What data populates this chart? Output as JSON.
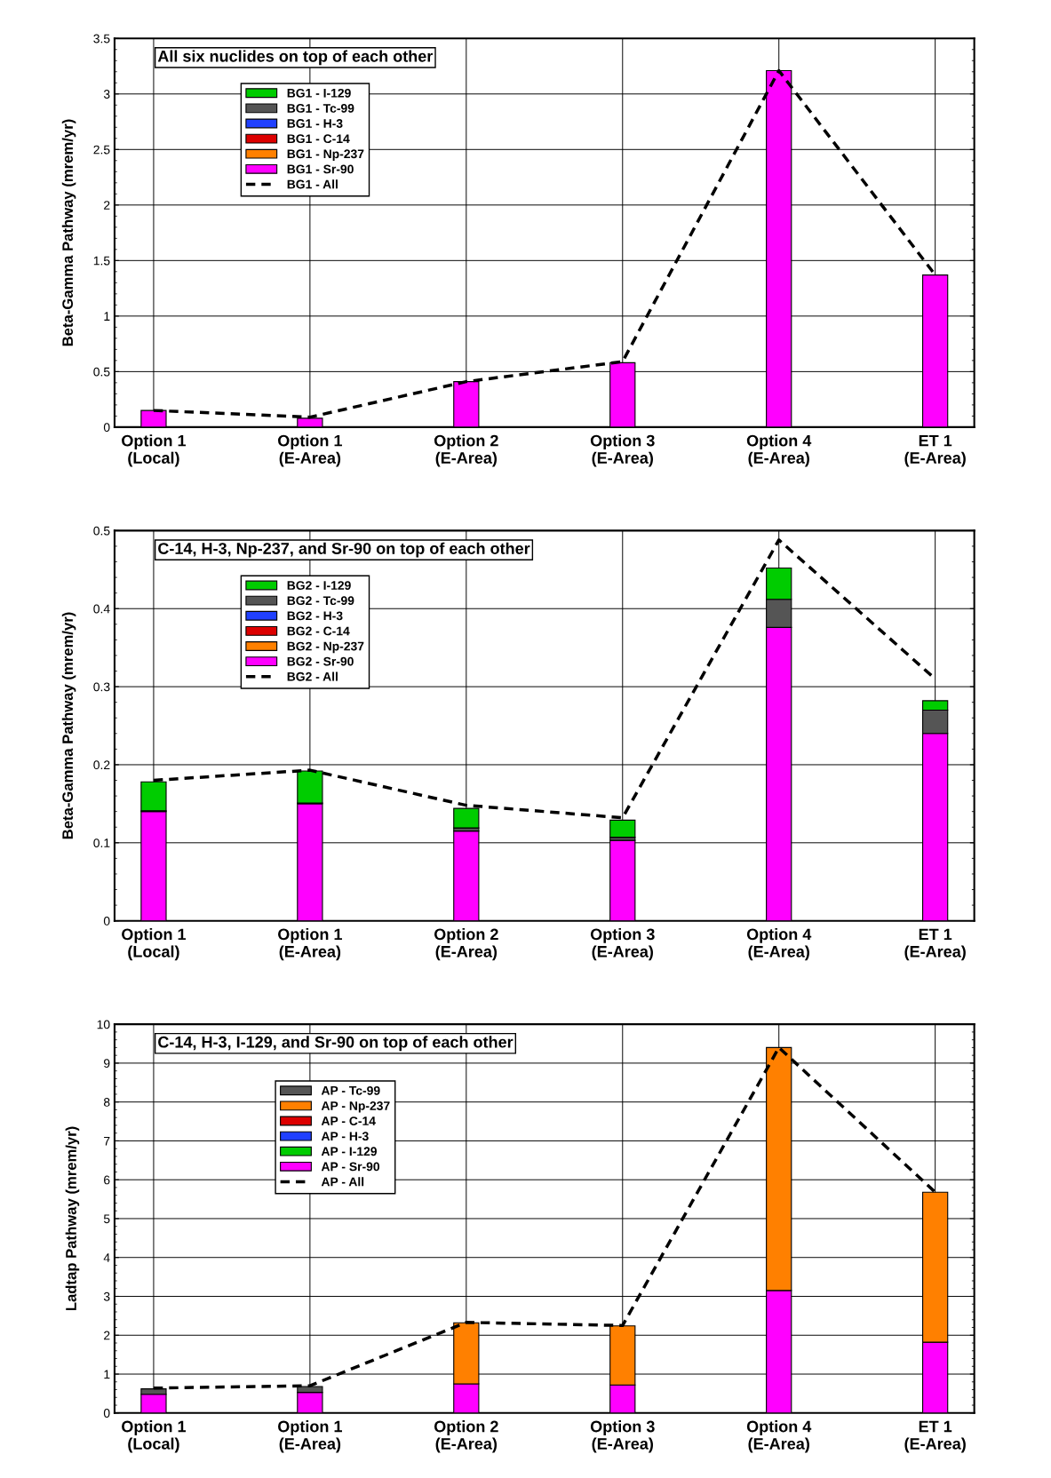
{
  "chart_data": [
    {
      "type": "bar",
      "stacked": true,
      "ylabel": "Beta-Gamma Pathway (mrem/yr)",
      "categories": [
        "Option 1\n(Local)",
        "Option 1\n(E-Area)",
        "Option 2\n(E-Area)",
        "Option 3\n(E-Area)",
        "Option 4\n(E-Area)",
        "ET 1\n(E-Area)"
      ],
      "ylim": [
        0,
        3.5
      ],
      "yticks": [
        0,
        0.5,
        1,
        1.5,
        2,
        2.5,
        3,
        3.5
      ],
      "grid": true,
      "legend": "top left",
      "annotations": [
        "All six nuclides on top of each other"
      ],
      "series": [
        {
          "name": "BG1 - Sr-90",
          "color": "#ff00ff",
          "values": [
            0.15,
            0.08,
            0.41,
            0.58,
            3.21,
            1.37
          ]
        },
        {
          "name": "BG1 - Np-237",
          "color": "#ff8000",
          "values": [
            0,
            0,
            0,
            0,
            0,
            0
          ]
        },
        {
          "name": "BG1 - C-14",
          "color": "#dd0000",
          "values": [
            0,
            0,
            0,
            0,
            0,
            0
          ]
        },
        {
          "name": "BG1 - H-3",
          "color": "#2040ff",
          "values": [
            0,
            0,
            0,
            0,
            0,
            0
          ]
        },
        {
          "name": "BG1 - Tc-99",
          "color": "#555555",
          "values": [
            0,
            0,
            0,
            0,
            0,
            0
          ]
        },
        {
          "name": "BG1 - I-129",
          "color": "#00cc00",
          "values": [
            0,
            0,
            0,
            0,
            0,
            0
          ]
        },
        {
          "name": "BG1 - All",
          "type": "line",
          "color": "#000000",
          "line_style": "dashed",
          "marker": "none",
          "values": [
            0.15,
            0.09,
            0.41,
            0.59,
            3.21,
            1.37
          ]
        }
      ]
    },
    {
      "type": "bar",
      "stacked": true,
      "ylabel": "Beta-Gamma Pathway (mrem/yr)",
      "categories": [
        "Option 1\n(Local)",
        "Option 1\n(E-Area)",
        "Option 2\n(E-Area)",
        "Option 3\n(E-Area)",
        "Option 4\n(E-Area)",
        "ET 1\n(E-Area)"
      ],
      "ylim": [
        0,
        0.5
      ],
      "yticks": [
        0,
        0.1,
        0.2,
        0.3,
        0.4,
        0.5
      ],
      "grid": true,
      "legend": "top left",
      "annotations": [
        "C-14, H-3, Np-237, and Sr-90 on top of each other"
      ],
      "series": [
        {
          "name": "BG2 - Sr-90",
          "color": "#ff00ff",
          "values": [
            0.14,
            0.15,
            0.115,
            0.103,
            0.376,
            0.24
          ]
        },
        {
          "name": "BG2 - Np-237",
          "color": "#ff8000",
          "values": [
            0,
            0,
            0,
            0,
            0,
            0
          ]
        },
        {
          "name": "BG2 - C-14",
          "color": "#dd0000",
          "values": [
            0,
            0,
            0,
            0,
            0,
            0
          ]
        },
        {
          "name": "BG2 - H-3",
          "color": "#2040ff",
          "values": [
            0,
            0,
            0,
            0,
            0,
            0
          ]
        },
        {
          "name": "BG2 - Tc-99",
          "color": "#555555",
          "values": [
            0.001,
            0.001,
            0.004,
            0.004,
            0.036,
            0.03
          ]
        },
        {
          "name": "BG2 - I-129",
          "color": "#00cc00",
          "values": [
            0.037,
            0.041,
            0.025,
            0.022,
            0.04,
            0.012
          ]
        },
        {
          "name": "BG2 - All",
          "type": "line",
          "color": "#000000",
          "line_style": "dashed",
          "marker": "none",
          "values": [
            0.18,
            0.193,
            0.148,
            0.132,
            0.488,
            0.31
          ]
        }
      ]
    },
    {
      "type": "bar",
      "stacked": true,
      "ylabel": "Ladtap Pathway (mrem/yr)",
      "categories": [
        "Option 1\n(Local)",
        "Option 1\n(E-Area)",
        "Option 2\n(E-Area)",
        "Option 3\n(E-Area)",
        "Option 4\n(E-Area)",
        "ET 1\n(E-Area)"
      ],
      "ylim": [
        0,
        10
      ],
      "yticks": [
        0,
        1,
        2,
        3,
        4,
        5,
        6,
        7,
        8,
        9,
        10
      ],
      "grid": true,
      "legend": "top left",
      "annotations": [
        "C-14, H-3, I-129, and Sr-90 on top of each other"
      ],
      "series": [
        {
          "name": "AP - Sr-90",
          "color": "#ff00ff",
          "values": [
            0.48,
            0.53,
            0.75,
            0.72,
            3.15,
            1.82
          ]
        },
        {
          "name": "AP - I-129",
          "color": "#00cc00",
          "values": [
            0,
            0,
            0,
            0,
            0,
            0
          ]
        },
        {
          "name": "AP - H-3",
          "color": "#2040ff",
          "values": [
            0,
            0,
            0,
            0,
            0,
            0
          ]
        },
        {
          "name": "AP - C-14",
          "color": "#dd0000",
          "values": [
            0,
            0,
            0,
            0,
            0,
            0
          ]
        },
        {
          "name": "AP - Np-237",
          "color": "#ff8000",
          "values": [
            0,
            0,
            1.57,
            1.52,
            6.25,
            3.86
          ]
        },
        {
          "name": "AP - Tc-99",
          "color": "#555555",
          "values": [
            0.14,
            0.15,
            0,
            0,
            0,
            0
          ]
        },
        {
          "name": "AP - All",
          "type": "line",
          "color": "#000000",
          "line_style": "dashed",
          "marker": "none",
          "values": [
            0.64,
            0.7,
            2.33,
            2.25,
            9.4,
            5.68
          ]
        }
      ]
    }
  ]
}
